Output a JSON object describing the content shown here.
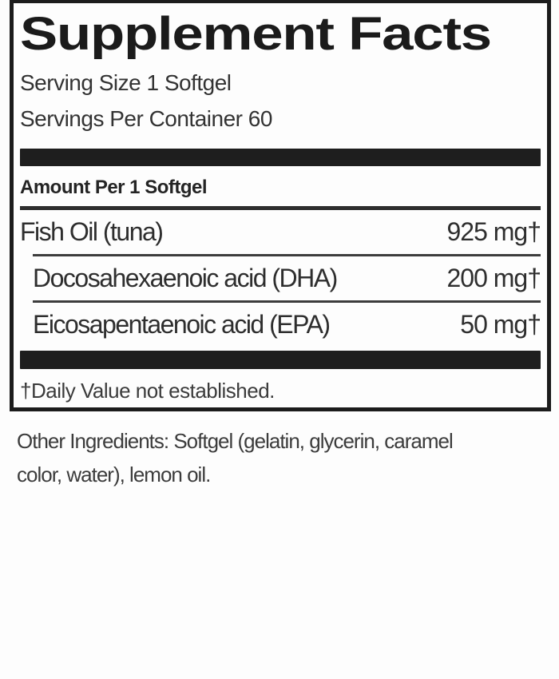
{
  "panel": {
    "title": "Supplement Facts",
    "serving_size": "Serving Size 1 Softgel",
    "servings_per_container": "Servings Per Container 60",
    "amount_header": "Amount Per 1 Softgel",
    "rows": [
      {
        "name": "Fish Oil (tuna)",
        "amount": "925 mg†",
        "indent": false
      },
      {
        "name": "Docosahexaenoic acid (DHA)",
        "amount": "200 mg†",
        "indent": true
      },
      {
        "name": "Eicosapentaenoic acid (EPA)",
        "amount": "50 mg†",
        "indent": true
      }
    ],
    "footnote": "†Daily Value not established."
  },
  "other_ingredients": {
    "lines": [
      "Other Ingredients: Softgel (gelatin, glycerin, caramel",
      "color, water), lemon oil."
    ]
  },
  "colors": {
    "border": "#1c1c1c",
    "bar": "#1e1e1e",
    "text": "#2e2e2e",
    "background": "#fdfdfd"
  }
}
